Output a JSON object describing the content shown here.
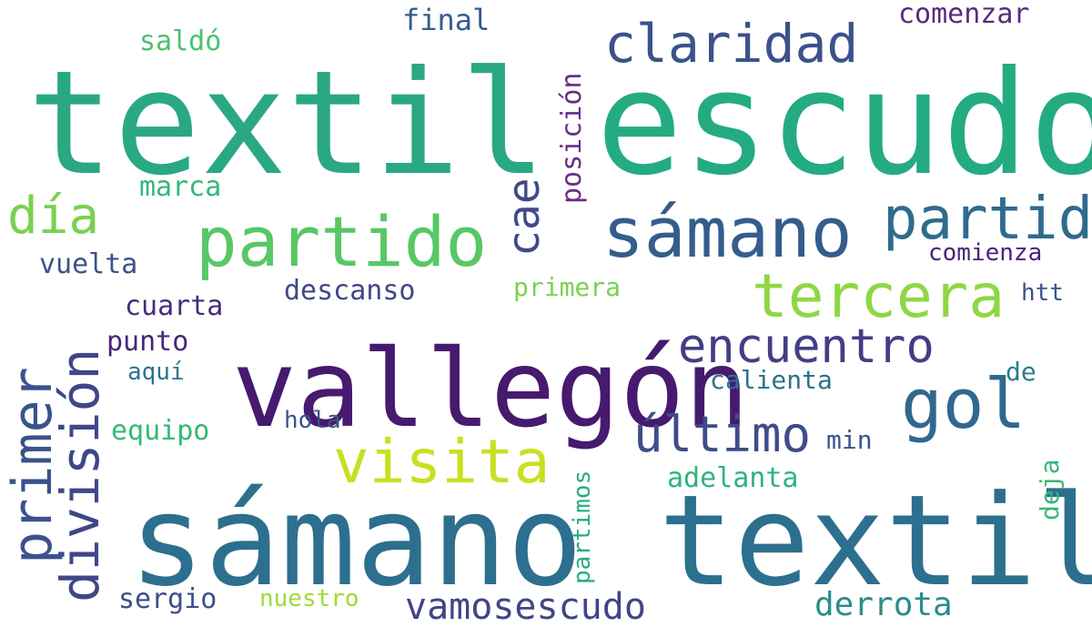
{
  "words": [
    {
      "text": "textil",
      "color": "#2aa883"
    },
    {
      "text": "escudo",
      "color": "#24ab82"
    },
    {
      "text": "sámano textil",
      "color": "#2d6f8e"
    },
    {
      "text": "vallegón",
      "color": "#461a6e"
    },
    {
      "text": "partido",
      "color": "#58c765"
    },
    {
      "text": "sámano",
      "color": "#355d8c"
    },
    {
      "text": "tercera",
      "color": "#8fd744"
    },
    {
      "text": "partid",
      "color": "#2f6b8e"
    },
    {
      "text": "claridad",
      "color": "#3b528b"
    },
    {
      "text": "encuentro",
      "color": "#433e85"
    },
    {
      "text": "gol",
      "color": "#31688e"
    },
    {
      "text": "último",
      "color": "#3e4c8a"
    },
    {
      "text": "visita",
      "color": "#c8e020"
    },
    {
      "text": "división",
      "color": "#3f4788"
    },
    {
      "text": "primer",
      "color": "#3b528b"
    },
    {
      "text": "día",
      "color": "#7ad151"
    },
    {
      "text": "cae",
      "color": "#3e4a89"
    },
    {
      "text": "posición",
      "color": "#6a2c86"
    },
    {
      "text": "vamosescudo",
      "color": "#414487"
    },
    {
      "text": "derrota",
      "color": "#2c8d8a"
    },
    {
      "text": "comenzar",
      "color": "#5b2a7a"
    },
    {
      "text": "final",
      "color": "#365c8d"
    },
    {
      "text": "saldó",
      "color": "#4ac16d"
    },
    {
      "text": "marca",
      "color": "#35b779"
    },
    {
      "text": "vuelta",
      "color": "#3b528b"
    },
    {
      "text": "descanso",
      "color": "#3f4788"
    },
    {
      "text": "primera",
      "color": "#7ad151"
    },
    {
      "text": "cuarta",
      "color": "#472d7b"
    },
    {
      "text": "punto",
      "color": "#482677"
    },
    {
      "text": "aquí",
      "color": "#2c728e"
    },
    {
      "text": "equipo",
      "color": "#35b779"
    },
    {
      "text": "hola",
      "color": "#3b528b"
    },
    {
      "text": "calienta",
      "color": "#2c728e"
    },
    {
      "text": "min",
      "color": "#3a548c"
    },
    {
      "text": "de",
      "color": "#287d8e"
    },
    {
      "text": "adelanta",
      "color": "#2fb47c"
    },
    {
      "text": "partimos",
      "color": "#26ad81"
    },
    {
      "text": "deja",
      "color": "#37b878"
    },
    {
      "text": "comienza",
      "color": "#482475"
    },
    {
      "text": "htt",
      "color": "#3b528b"
    },
    {
      "text": "sergio",
      "color": "#3d4e8a"
    },
    {
      "text": "nuestro",
      "color": "#a0da39"
    }
  ]
}
